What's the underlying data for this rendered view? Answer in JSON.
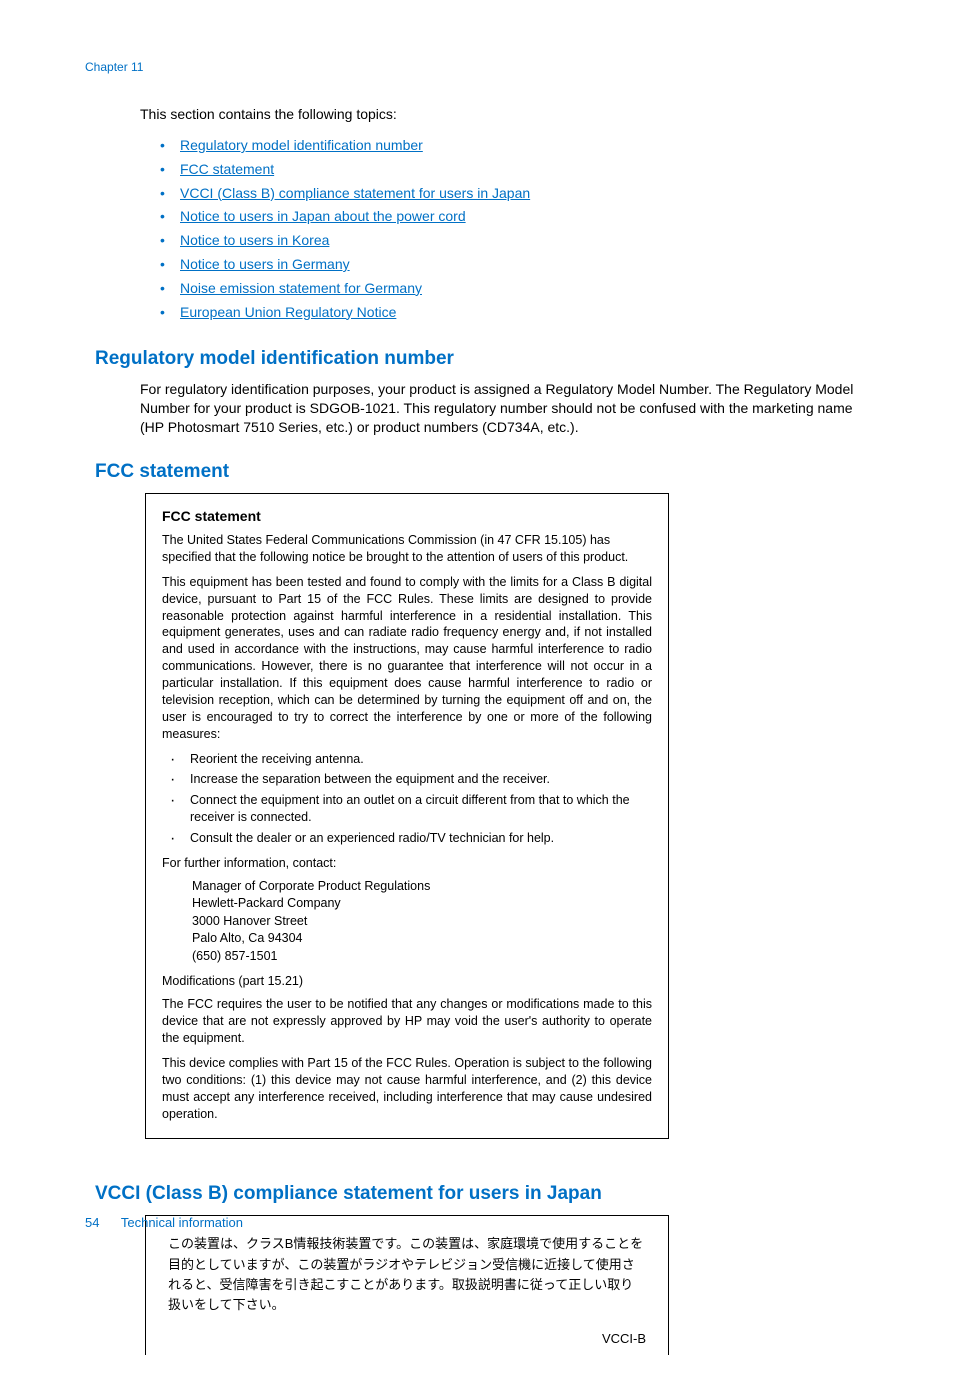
{
  "colors": {
    "link_blue": "#0070c5",
    "text_black": "#000000",
    "background": "#ffffff",
    "border": "#000000"
  },
  "chapter_label": "Chapter 11",
  "intro": "This section contains the following topics:",
  "toc": [
    "Regulatory model identification number",
    "FCC statement",
    "VCCI (Class B) compliance statement for users in Japan",
    "Notice to users in Japan about the power cord",
    "Notice to users in Korea",
    "Notice to users in Germany",
    "Noise emission statement for Germany",
    "European Union Regulatory Notice"
  ],
  "section1": {
    "heading": "Regulatory model identification number",
    "body": "For regulatory identification purposes, your product is assigned a Regulatory Model Number. The Regulatory Model Number for your product is SDGOB-1021. This regulatory number should not be confused with the marketing name (HP Photosmart 7510 Series, etc.) or product numbers (CD734A, etc.)."
  },
  "section2": {
    "heading": "FCC statement",
    "box": {
      "title": "FCC statement",
      "p1": "The United States Federal Communications Commission (in 47 CFR 15.105) has specified that the following notice be brought to the attention of users of this product.",
      "p2": "This equipment has been tested and found to comply with the limits for a Class B digital device, pursuant to Part 15 of the FCC Rules. These limits are designed to provide reasonable protection against harmful interference in a residential installation. This equipment generates, uses and can radiate radio frequency energy and, if not installed and used in accordance with the instructions, may cause harmful interference to radio communications. However, there is no guarantee that interference will not occur in a particular installation. If this equipment does cause harmful interference to radio or television reception, which can be determined by turning the equipment off and on, the user is encouraged to try to correct the interference by one or more of the following measures:",
      "bullets": [
        "Reorient the receiving antenna.",
        "Increase the separation between the equipment and the receiver.",
        "Connect the equipment into an outlet on a circuit different from that to which the receiver is connected.",
        "Consult the dealer or an experienced radio/TV technician for help."
      ],
      "contact_intro": "For further information, contact:",
      "contact_lines": [
        "Manager of Corporate Product Regulations",
        "Hewlett-Packard Company",
        "3000 Hanover Street",
        "Palo Alto, Ca 94304",
        "(650) 857-1501"
      ],
      "mods_heading": "Modifications (part 15.21)",
      "p3": "The FCC requires the user to be notified that any changes or modifications made to this device that are not expressly approved by HP may void the user's authority to operate the equipment.",
      "p4": "This device complies with Part 15 of the FCC Rules. Operation is subject to the following two conditions: (1) this device may not cause harmful interference, and (2) this device must accept any interference received, including interference that may cause undesired operation."
    }
  },
  "section3": {
    "heading": "VCCI (Class B) compliance statement for users in Japan",
    "box": {
      "text": "この装置は、クラスB情報技術装置です。この装置は、家庭環境で使用することを目的としていますが、この装置がラジオやテレビジョン受信機に近接して使用されると、受信障害を引き起こすことがあります。取扱説明書に従って正しい取り扱いをして下さい。",
      "label": "VCCI-B"
    }
  },
  "footer": {
    "page": "54",
    "title": "Technical information"
  }
}
